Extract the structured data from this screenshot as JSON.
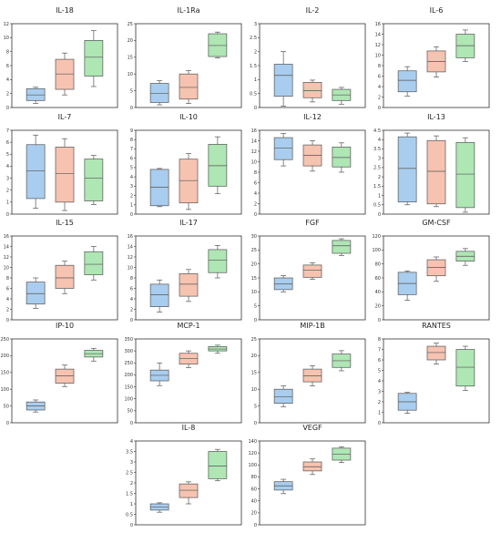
{
  "palette": {
    "blue": "#a9cdee",
    "salmon": "#f6c3b0",
    "green": "#aee6b4",
    "frame": "#333333",
    "stroke": "#555555"
  },
  "chart_data": [
    {
      "type": "box",
      "title": "IL-18",
      "ylim": [
        0,
        12
      ],
      "yticks": [
        "0",
        "2",
        "4",
        "6",
        "8",
        "10",
        "12"
      ],
      "series": [
        {
          "color": "blue",
          "whisker_low": 0.6,
          "q1": 1.0,
          "median": 1.8,
          "q3": 2.7,
          "whisker_high": 2.9
        },
        {
          "color": "salmon",
          "whisker_low": 1.8,
          "q1": 2.6,
          "median": 4.8,
          "q3": 6.9,
          "whisker_high": 7.8
        },
        {
          "color": "green",
          "whisker_low": 3.0,
          "q1": 4.5,
          "median": 7.2,
          "q3": 9.6,
          "whisker_high": 11.0
        }
      ]
    },
    {
      "type": "box",
      "title": "IL-1Ra",
      "ylim": [
        0,
        25
      ],
      "yticks": [
        "0",
        "5",
        "10",
        "15",
        "20",
        "25"
      ],
      "series": [
        {
          "color": "blue",
          "whisker_low": 0.8,
          "q1": 1.5,
          "median": 4.2,
          "q3": 7.2,
          "whisker_high": 8.0
        },
        {
          "color": "salmon",
          "whisker_low": 1.2,
          "q1": 2.5,
          "median": 6.0,
          "q3": 10.0,
          "whisker_high": 11.0
        },
        {
          "color": "green",
          "whisker_low": 14.8,
          "q1": 15.2,
          "median": 18.5,
          "q3": 22.0,
          "whisker_high": 22.5
        }
      ]
    },
    {
      "type": "box",
      "title": "IL-2",
      "ylim": [
        0,
        3
      ],
      "yticks": [
        "0",
        "0.5",
        "1",
        "1.5",
        "2",
        "2.5",
        "3"
      ],
      "series": [
        {
          "color": "blue",
          "whisker_low": 0.05,
          "q1": 0.4,
          "median": 1.15,
          "q3": 1.55,
          "whisker_high": 2.0
        },
        {
          "color": "salmon",
          "whisker_low": 0.2,
          "q1": 0.35,
          "median": 0.6,
          "q3": 0.9,
          "whisker_high": 0.98
        },
        {
          "color": "green",
          "whisker_low": 0.12,
          "q1": 0.25,
          "median": 0.45,
          "q3": 0.65,
          "whisker_high": 0.72
        }
      ]
    },
    {
      "type": "box",
      "title": "IL-6",
      "ylim": [
        0,
        16
      ],
      "yticks": [
        "0",
        "2",
        "4",
        "6",
        "8",
        "10",
        "12",
        "14",
        "16"
      ],
      "series": [
        {
          "color": "blue",
          "whisker_low": 2.2,
          "q1": 3.0,
          "median": 5.2,
          "q3": 7.0,
          "whisker_high": 7.8
        },
        {
          "color": "salmon",
          "whisker_low": 5.8,
          "q1": 6.8,
          "median": 8.8,
          "q3": 10.8,
          "whisker_high": 11.6
        },
        {
          "color": "green",
          "whisker_low": 8.8,
          "q1": 9.5,
          "median": 11.8,
          "q3": 14.0,
          "whisker_high": 14.8
        }
      ]
    },
    {
      "type": "box",
      "title": "IL-7",
      "ylim": [
        0,
        7
      ],
      "yticks": [
        "0",
        "1",
        "2",
        "3",
        "4",
        "5",
        "6",
        "7"
      ],
      "series": [
        {
          "color": "blue",
          "whisker_low": 0.5,
          "q1": 1.3,
          "median": 3.6,
          "q3": 5.8,
          "whisker_high": 6.6
        },
        {
          "color": "salmon",
          "whisker_low": 0.3,
          "q1": 1.0,
          "median": 3.4,
          "q3": 5.6,
          "whisker_high": 6.3
        },
        {
          "color": "green",
          "whisker_low": 0.8,
          "q1": 1.1,
          "median": 3.0,
          "q3": 4.6,
          "whisker_high": 4.9
        }
      ]
    },
    {
      "type": "box",
      "title": "IL-10",
      "ylim": [
        0,
        9
      ],
      "yticks": [
        "0",
        "1",
        "2",
        "3",
        "4",
        "5",
        "6",
        "7",
        "8",
        "9"
      ],
      "series": [
        {
          "color": "blue",
          "whisker_low": 0.8,
          "q1": 0.9,
          "median": 2.9,
          "q3": 4.8,
          "whisker_high": 4.9
        },
        {
          "color": "salmon",
          "whisker_low": 0.5,
          "q1": 1.2,
          "median": 3.6,
          "q3": 5.9,
          "whisker_high": 6.5
        },
        {
          "color": "green",
          "whisker_low": 2.2,
          "q1": 3.0,
          "median": 5.2,
          "q3": 7.5,
          "whisker_high": 8.3
        }
      ]
    },
    {
      "type": "box",
      "title": "IL-12",
      "ylim": [
        0,
        16
      ],
      "yticks": [
        "0",
        "2",
        "4",
        "6",
        "8",
        "10",
        "12",
        "14",
        "16"
      ],
      "series": [
        {
          "color": "blue",
          "whisker_low": 9.2,
          "q1": 10.4,
          "median": 12.6,
          "q3": 14.6,
          "whisker_high": 15.4
        },
        {
          "color": "salmon",
          "whisker_low": 8.2,
          "q1": 9.2,
          "median": 11.2,
          "q3": 13.2,
          "whisker_high": 14.0
        },
        {
          "color": "green",
          "whisker_low": 8.0,
          "q1": 9.0,
          "median": 10.8,
          "q3": 12.8,
          "whisker_high": 13.6
        }
      ]
    },
    {
      "type": "box",
      "title": "IL-13",
      "ylim": [
        0,
        4.5
      ],
      "yticks": [
        "0",
        "0.5",
        "1",
        "1.5",
        "2",
        "2.5",
        "3",
        "3.5",
        "4",
        "4.5"
      ],
      "series": [
        {
          "color": "blue",
          "whisker_low": 0.5,
          "q1": 0.65,
          "median": 2.45,
          "q3": 4.15,
          "whisker_high": 4.35
        },
        {
          "color": "salmon",
          "whisker_low": 0.4,
          "q1": 0.55,
          "median": 2.3,
          "q3": 3.95,
          "whisker_high": 4.2
        },
        {
          "color": "green",
          "whisker_low": 0.1,
          "q1": 0.35,
          "median": 2.15,
          "q3": 3.85,
          "whisker_high": 4.1
        }
      ]
    },
    {
      "type": "box",
      "title": "IL-15",
      "ylim": [
        0,
        16
      ],
      "yticks": [
        "0",
        "2",
        "4",
        "6",
        "8",
        "10",
        "12",
        "14",
        "16"
      ],
      "series": [
        {
          "color": "blue",
          "whisker_low": 2.2,
          "q1": 3.0,
          "median": 5.0,
          "q3": 7.2,
          "whisker_high": 8.0
        },
        {
          "color": "salmon",
          "whisker_low": 5.0,
          "q1": 6.0,
          "median": 8.0,
          "q3": 10.4,
          "whisker_high": 11.2
        },
        {
          "color": "green",
          "whisker_low": 7.6,
          "q1": 8.6,
          "median": 10.6,
          "q3": 13.0,
          "whisker_high": 14.0
        }
      ]
    },
    {
      "type": "box",
      "title": "IL-17",
      "ylim": [
        0,
        16
      ],
      "yticks": [
        "0",
        "2",
        "4",
        "6",
        "8",
        "10",
        "12",
        "14",
        "16"
      ],
      "series": [
        {
          "color": "blue",
          "whisker_low": 1.5,
          "q1": 2.5,
          "median": 4.8,
          "q3": 6.8,
          "whisker_high": 7.6
        },
        {
          "color": "salmon",
          "whisker_low": 3.5,
          "q1": 4.5,
          "median": 6.8,
          "q3": 8.8,
          "whisker_high": 9.6
        },
        {
          "color": "green",
          "whisker_low": 8.0,
          "q1": 9.0,
          "median": 11.4,
          "q3": 13.4,
          "whisker_high": 14.2
        }
      ]
    },
    {
      "type": "box",
      "title": "FGF",
      "ylim": [
        0,
        30
      ],
      "yticks": [
        "0",
        "5",
        "10",
        "15",
        "20",
        "25",
        "30"
      ],
      "series": [
        {
          "color": "blue",
          "whisker_low": 10.0,
          "q1": 10.8,
          "median": 12.8,
          "q3": 15.0,
          "whisker_high": 15.8
        },
        {
          "color": "salmon",
          "whisker_low": 14.5,
          "q1": 15.2,
          "median": 17.8,
          "q3": 19.6,
          "whisker_high": 20.4
        },
        {
          "color": "green",
          "whisker_low": 23.0,
          "q1": 23.8,
          "median": 26.5,
          "q3": 28.4,
          "whisker_high": 29.0
        }
      ]
    },
    {
      "type": "box",
      "title": "GM-CSF",
      "ylim": [
        0,
        120
      ],
      "yticks": [
        "0",
        "20",
        "40",
        "60",
        "80",
        "100",
        "120"
      ],
      "series": [
        {
          "color": "blue",
          "whisker_low": 28,
          "q1": 36,
          "median": 52,
          "q3": 68,
          "whisker_high": 70
        },
        {
          "color": "salmon",
          "whisker_low": 55,
          "q1": 63,
          "median": 75,
          "q3": 86,
          "whisker_high": 90
        },
        {
          "color": "green",
          "whisker_low": 78,
          "q1": 84,
          "median": 91,
          "q3": 98,
          "whisker_high": 102
        }
      ]
    },
    {
      "type": "box",
      "title": "IP-10",
      "ylim": [
        0,
        250
      ],
      "yticks": [
        "0",
        "50",
        "100",
        "150",
        "200",
        "250"
      ],
      "series": [
        {
          "color": "blue",
          "whisker_low": 32,
          "q1": 38,
          "median": 50,
          "q3": 62,
          "whisker_high": 68
        },
        {
          "color": "salmon",
          "whisker_low": 108,
          "q1": 118,
          "median": 140,
          "q3": 160,
          "whisker_high": 172
        },
        {
          "color": "green",
          "whisker_low": 184,
          "q1": 196,
          "median": 206,
          "q3": 216,
          "whisker_high": 222
        }
      ]
    },
    {
      "type": "box",
      "title": "MCP-1",
      "ylim": [
        0,
        350
      ],
      "yticks": [
        "0",
        "50",
        "100",
        "150",
        "200",
        "250",
        "300",
        "350"
      ],
      "series": [
        {
          "color": "blue",
          "whisker_low": 155,
          "q1": 175,
          "median": 198,
          "q3": 220,
          "whisker_high": 250
        },
        {
          "color": "salmon",
          "whisker_low": 230,
          "q1": 245,
          "median": 268,
          "q3": 290,
          "whisker_high": 300
        },
        {
          "color": "green",
          "whisker_low": 290,
          "q1": 300,
          "median": 308,
          "q3": 318,
          "whisker_high": 324
        }
      ]
    },
    {
      "type": "box",
      "title": "MIP-1B",
      "ylim": [
        0,
        25
      ],
      "yticks": [
        "0",
        "5",
        "10",
        "15",
        "20",
        "25"
      ],
      "series": [
        {
          "color": "blue",
          "whisker_low": 4.8,
          "q1": 5.8,
          "median": 7.8,
          "q3": 10.0,
          "whisker_high": 11.0
        },
        {
          "color": "salmon",
          "whisker_low": 11.0,
          "q1": 12.2,
          "median": 14.0,
          "q3": 16.0,
          "whisker_high": 17.0
        },
        {
          "color": "green",
          "whisker_low": 15.5,
          "q1": 16.5,
          "median": 18.5,
          "q3": 20.5,
          "whisker_high": 21.5
        }
      ]
    },
    {
      "type": "box",
      "title": "RANTES",
      "ylim": [
        0,
        8
      ],
      "yticks": [
        "0",
        "1",
        "2",
        "3",
        "4",
        "5",
        "6",
        "7",
        "8"
      ],
      "series": [
        {
          "color": "blue",
          "whisker_low": 0.9,
          "q1": 1.2,
          "median": 2.0,
          "q3": 2.8,
          "whisker_high": 2.9
        },
        {
          "color": "salmon",
          "whisker_low": 5.6,
          "q1": 6.0,
          "median": 6.7,
          "q3": 7.3,
          "whisker_high": 7.6
        },
        {
          "color": "green",
          "whisker_low": 3.1,
          "q1": 3.5,
          "median": 5.3,
          "q3": 7.0,
          "whisker_high": 7.3
        }
      ]
    },
    {
      "type": "box",
      "title": "IL-8",
      "ylim": [
        0,
        4
      ],
      "yticks": [
        "0",
        "0.5",
        "1",
        "1.5",
        "2",
        "2.5",
        "3",
        "3.5",
        "4"
      ],
      "series": [
        {
          "color": "blue",
          "whisker_low": 0.6,
          "q1": 0.7,
          "median": 0.85,
          "q3": 1.0,
          "whisker_high": 1.05
        },
        {
          "color": "salmon",
          "whisker_low": 1.0,
          "q1": 1.3,
          "median": 1.65,
          "q3": 1.95,
          "whisker_high": 2.05
        },
        {
          "color": "green",
          "whisker_low": 2.1,
          "q1": 2.2,
          "median": 2.8,
          "q3": 3.5,
          "whisker_high": 3.6
        }
      ]
    },
    {
      "type": "box",
      "title": "VEGF",
      "ylim": [
        0,
        140
      ],
      "yticks": [
        "0",
        "20",
        "40",
        "60",
        "80",
        "100",
        "120",
        "140"
      ],
      "series": [
        {
          "color": "blue",
          "whisker_low": 52,
          "q1": 58,
          "median": 65,
          "q3": 72,
          "whisker_high": 76
        },
        {
          "color": "salmon",
          "whisker_low": 84,
          "q1": 90,
          "median": 97,
          "q3": 105,
          "whisker_high": 110
        },
        {
          "color": "green",
          "whisker_low": 104,
          "q1": 108,
          "median": 118,
          "q3": 128,
          "whisker_high": 130
        }
      ]
    }
  ]
}
